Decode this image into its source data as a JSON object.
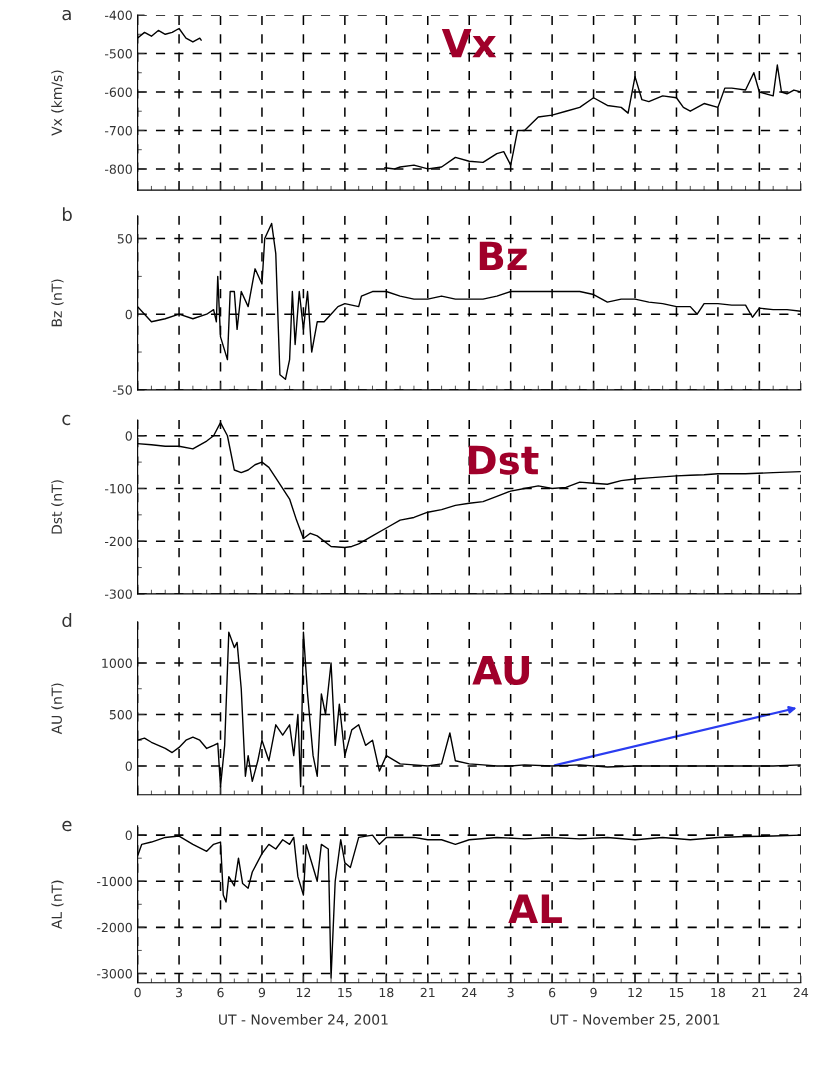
{
  "chart_data": [
    {
      "type": "line",
      "ylabel": "Vx (km/s)",
      "annotations": [
        "a",
        "Vx"
      ],
      "x": [
        "2001-11-24T00:00",
        "2001-11-24T00:30",
        "2001-11-24T01:00",
        "2001-11-24T01:30",
        "2001-11-24T02:00",
        "2001-11-24T02:30",
        "2001-11-24T03:00",
        "2001-11-24T03:30",
        "2001-11-24T04:00",
        "2001-11-24T04:30",
        "2001-11-24T04:36",
        "2001-11-24T05:00",
        "2001-11-24T17:54",
        "2001-11-24T18:36",
        "2001-11-24T19:00",
        "2001-11-24T20:00",
        "2001-11-24T21:00",
        "2001-11-24T22:00",
        "2001-11-24T23:00",
        "2001-11-25T00:00",
        "2001-11-25T01:00",
        "2001-11-25T02:00",
        "2001-11-25T02:30",
        "2001-11-25T03:00",
        "2001-11-25T03:12",
        "2001-11-25T03:30",
        "2001-11-25T04:00",
        "2001-11-25T05:00",
        "2001-11-25T06:00",
        "2001-11-25T07:00",
        "2001-11-25T08:00",
        "2001-11-25T09:00",
        "2001-11-25T10:00",
        "2001-11-25T11:00",
        "2001-11-25T11:30",
        "2001-11-25T12:00",
        "2001-11-25T12:30",
        "2001-11-25T13:00",
        "2001-11-25T14:00",
        "2001-11-25T15:00",
        "2001-11-25T15:30",
        "2001-11-25T16:00",
        "2001-11-25T17:00",
        "2001-11-25T18:00",
        "2001-11-25T18:30",
        "2001-11-25T19:00",
        "2001-11-25T20:00",
        "2001-11-25T20:36",
        "2001-11-25T21:00",
        "2001-11-25T22:00",
        "2001-11-25T22:18",
        "2001-11-25T22:36",
        "2001-11-25T23:00",
        "2001-11-25T23:30",
        "2001-11-26T00:00"
      ],
      "series": [
        {
          "color": "#000000",
          "values": [
            -460,
            -445,
            -455,
            -440,
            -450,
            -445,
            -435,
            -460,
            -470,
            -460,
            -465,
            null,
            -797,
            -800,
            -795,
            -790,
            -800,
            -795,
            -770,
            -780,
            -783,
            -760,
            -755,
            -790,
            -755,
            -700,
            -700,
            -665,
            -660,
            -650,
            -640,
            -615,
            -635,
            -640,
            -655,
            -560,
            -620,
            -625,
            -610,
            -615,
            -640,
            -650,
            -630,
            -640,
            -590,
            -590,
            -595,
            -550,
            -600,
            -610,
            -530,
            -600,
            -605,
            -595,
            -600
          ]
        }
      ],
      "xlim": [
        "2001-11-24T00:00",
        "2001-11-26T00:00"
      ],
      "ylim": [
        -855,
        -400
      ],
      "yticks": [
        -400,
        -500,
        -600,
        -700,
        -800
      ],
      "xticks": [
        {
          "value": "2001-11-24T00:00",
          "label": null
        },
        {
          "value": "2001-11-24T03:00",
          "label": null
        },
        {
          "value": "2001-11-24T06:00",
          "label": null
        },
        {
          "value": "2001-11-24T09:00",
          "label": null
        },
        {
          "value": "2001-11-24T12:00",
          "label": null
        },
        {
          "value": "2001-11-24T15:00",
          "label": null
        },
        {
          "value": "2001-11-24T18:00",
          "label": null
        },
        {
          "value": "2001-11-24T21:00",
          "label": null
        },
        {
          "value": "2001-11-25T00:00",
          "label": null
        },
        {
          "value": "2001-11-25T03:00",
          "label": null
        },
        {
          "value": "2001-11-25T06:00",
          "label": null
        },
        {
          "value": "2001-11-25T09:00",
          "label": null
        },
        {
          "value": "2001-11-25T12:00",
          "label": null
        },
        {
          "value": "2001-11-25T15:00",
          "label": null
        },
        {
          "value": "2001-11-25T18:00",
          "label": null
        },
        {
          "value": "2001-11-25T21:00",
          "label": null
        },
        {
          "value": "2001-11-26T00:00",
          "label": null
        }
      ],
      "tick_labels": "y",
      "grid": true,
      "marker": "none",
      "line_style": "solid"
    },
    {
      "type": "line",
      "ylabel": "Bz (nT)",
      "annotations": [
        "b",
        "Bz"
      ],
      "x": [
        "2001-11-24T00:00",
        "2001-11-24T00:30",
        "2001-11-24T01:00",
        "2001-11-24T02:00",
        "2001-11-24T03:00",
        "2001-11-24T04:00",
        "2001-11-24T05:00",
        "2001-11-24T05:30",
        "2001-11-24T05:42",
        "2001-11-24T05:48",
        "2001-11-24T06:00",
        "2001-11-24T06:30",
        "2001-11-24T06:42",
        "2001-11-24T07:00",
        "2001-11-24T07:12",
        "2001-11-24T07:30",
        "2001-11-24T08:00",
        "2001-11-24T08:30",
        "2001-11-24T09:00",
        "2001-11-24T09:12",
        "2001-11-24T09:42",
        "2001-11-24T10:00",
        "2001-11-24T10:18",
        "2001-11-24T10:42",
        "2001-11-24T11:00",
        "2001-11-24T11:12",
        "2001-11-24T11:24",
        "2001-11-24T11:42",
        "2001-11-24T12:00",
        "2001-11-24T12:18",
        "2001-11-24T12:36",
        "2001-11-24T13:00",
        "2001-11-24T13:30",
        "2001-11-24T14:00",
        "2001-11-24T14:30",
        "2001-11-24T15:00",
        "2001-11-24T16:00",
        "2001-11-24T16:12",
        "2001-11-24T17:00",
        "2001-11-24T18:00",
        "2001-11-24T19:00",
        "2001-11-24T20:00",
        "2001-11-24T21:00",
        "2001-11-24T22:00",
        "2001-11-24T23:00",
        "2001-11-25T00:00",
        "2001-11-25T01:00",
        "2001-11-25T02:00",
        "2001-11-25T03:00",
        "2001-11-25T04:00",
        "2001-11-25T06:00",
        "2001-11-25T08:00",
        "2001-11-25T09:00",
        "2001-11-25T10:00",
        "2001-11-25T11:00",
        "2001-11-25T12:00",
        "2001-11-25T13:00",
        "2001-11-25T14:00",
        "2001-11-25T15:00",
        "2001-11-25T16:00",
        "2001-11-25T16:30",
        "2001-11-25T17:00",
        "2001-11-25T18:00",
        "2001-11-25T19:00",
        "2001-11-25T20:00",
        "2001-11-25T20:30",
        "2001-11-25T21:00",
        "2001-11-25T22:00",
        "2001-11-25T23:00",
        "2001-11-26T00:00"
      ],
      "series": [
        {
          "color": "#000000",
          "values": [
            5,
            0,
            -5,
            -3,
            0,
            -3,
            0,
            3,
            -5,
            25,
            -15,
            -30,
            15,
            15,
            -10,
            15,
            5,
            30,
            20,
            50,
            60,
            40,
            -40,
            -43,
            -30,
            15,
            -20,
            15,
            -10,
            15,
            -25,
            -5,
            -5,
            0,
            5,
            7,
            5,
            12,
            15,
            15,
            12,
            10,
            10,
            12,
            10,
            10,
            10,
            12,
            15,
            15,
            15,
            15,
            13,
            8,
            10,
            10,
            8,
            7,
            5,
            5,
            0,
            7,
            7,
            6,
            6,
            -2,
            4,
            3,
            3,
            2
          ]
        }
      ],
      "xlim": [
        "2001-11-24T00:00",
        "2001-11-26T00:00"
      ],
      "ylim": [
        -50,
        65
      ],
      "yticks": [
        -50,
        0,
        50
      ],
      "xticks": [
        {
          "value": "2001-11-24T00:00",
          "label": null
        },
        {
          "value": "2001-11-24T03:00",
          "label": null
        },
        {
          "value": "2001-11-24T06:00",
          "label": null
        },
        {
          "value": "2001-11-24T09:00",
          "label": null
        },
        {
          "value": "2001-11-24T12:00",
          "label": null
        },
        {
          "value": "2001-11-24T15:00",
          "label": null
        },
        {
          "value": "2001-11-24T18:00",
          "label": null
        },
        {
          "value": "2001-11-24T21:00",
          "label": null
        },
        {
          "value": "2001-11-25T00:00",
          "label": null
        },
        {
          "value": "2001-11-25T03:00",
          "label": null
        },
        {
          "value": "2001-11-25T06:00",
          "label": null
        },
        {
          "value": "2001-11-25T09:00",
          "label": null
        },
        {
          "value": "2001-11-25T12:00",
          "label": null
        },
        {
          "value": "2001-11-25T15:00",
          "label": null
        },
        {
          "value": "2001-11-25T18:00",
          "label": null
        },
        {
          "value": "2001-11-25T21:00",
          "label": null
        },
        {
          "value": "2001-11-26T00:00",
          "label": null
        }
      ],
      "tick_labels": "y",
      "grid": true,
      "marker": "none",
      "line_style": "solid"
    },
    {
      "type": "line",
      "ylabel": "Dst (nT)",
      "annotations": [
        "c",
        "Dst"
      ],
      "x": [
        "2001-11-24T00:00",
        "2001-11-24T01:00",
        "2001-11-24T02:00",
        "2001-11-24T03:00",
        "2001-11-24T04:00",
        "2001-11-24T05:00",
        "2001-11-24T05:30",
        "2001-11-24T06:00",
        "2001-11-24T06:30",
        "2001-11-24T07:00",
        "2001-11-24T07:30",
        "2001-11-24T08:00",
        "2001-11-24T08:30",
        "2001-11-24T09:00",
        "2001-11-24T09:30",
        "2001-11-24T10:00",
        "2001-11-24T11:00",
        "2001-11-24T11:30",
        "2001-11-24T12:00",
        "2001-11-24T12:30",
        "2001-11-24T13:00",
        "2001-11-24T14:00",
        "2001-11-24T15:00",
        "2001-11-24T15:30",
        "2001-11-24T16:00",
        "2001-11-24T17:00",
        "2001-11-24T18:00",
        "2001-11-24T19:00",
        "2001-11-24T20:00",
        "2001-11-24T21:00",
        "2001-11-24T22:00",
        "2001-11-24T23:00",
        "2001-11-25T00:00",
        "2001-11-25T01:00",
        "2001-11-25T02:00",
        "2001-11-25T03:00",
        "2001-11-25T04:00",
        "2001-11-25T05:00",
        "2001-11-25T06:00",
        "2001-11-25T07:00",
        "2001-11-25T08:00",
        "2001-11-25T09:00",
        "2001-11-25T10:00",
        "2001-11-25T11:00",
        "2001-11-25T12:00",
        "2001-11-25T13:00",
        "2001-11-25T14:00",
        "2001-11-25T15:00",
        "2001-11-25T16:00",
        "2001-11-25T17:00",
        "2001-11-25T18:00",
        "2001-11-25T20:00",
        "2001-11-25T22:00",
        "2001-11-26T00:00"
      ],
      "series": [
        {
          "color": "#000000",
          "values": [
            -15,
            -17,
            -20,
            -20,
            -25,
            -10,
            0,
            25,
            0,
            -65,
            -70,
            -65,
            -55,
            -50,
            -60,
            -80,
            -120,
            -160,
            -195,
            -185,
            -190,
            -210,
            -212,
            -210,
            -205,
            -190,
            -175,
            -160,
            -155,
            -145,
            -140,
            -132,
            -128,
            -125,
            -115,
            -105,
            -100,
            -95,
            -100,
            -98,
            -88,
            -90,
            -92,
            -85,
            -82,
            -80,
            -78,
            -76,
            -75,
            -74,
            -72,
            -72,
            -70,
            -68
          ]
        }
      ],
      "xlim": [
        "2001-11-24T00:00",
        "2001-11-26T00:00"
      ],
      "ylim": [
        -300,
        30
      ],
      "yticks": [
        -300,
        -200,
        -100,
        0
      ],
      "xticks": [
        {
          "value": "2001-11-24T00:00",
          "label": null
        },
        {
          "value": "2001-11-24T03:00",
          "label": null
        },
        {
          "value": "2001-11-24T06:00",
          "label": null
        },
        {
          "value": "2001-11-24T09:00",
          "label": null
        },
        {
          "value": "2001-11-24T12:00",
          "label": null
        },
        {
          "value": "2001-11-24T15:00",
          "label": null
        },
        {
          "value": "2001-11-24T18:00",
          "label": null
        },
        {
          "value": "2001-11-24T21:00",
          "label": null
        },
        {
          "value": "2001-11-25T00:00",
          "label": null
        },
        {
          "value": "2001-11-25T03:00",
          "label": null
        },
        {
          "value": "2001-11-25T06:00",
          "label": null
        },
        {
          "value": "2001-11-25T09:00",
          "label": null
        },
        {
          "value": "2001-11-25T12:00",
          "label": null
        },
        {
          "value": "2001-11-25T15:00",
          "label": null
        },
        {
          "value": "2001-11-25T18:00",
          "label": null
        },
        {
          "value": "2001-11-25T21:00",
          "label": null
        },
        {
          "value": "2001-11-26T00:00",
          "label": null
        }
      ],
      "tick_labels": "y",
      "grid": true,
      "marker": "none",
      "line_style": "solid"
    },
    {
      "type": "line",
      "ylabel": "AU (nT)",
      "annotations": [
        "d",
        "AU"
      ],
      "x": [
        "2001-11-24T00:00",
        "2001-11-24T00:30",
        "2001-11-24T01:00",
        "2001-11-24T02:00",
        "2001-11-24T02:30",
        "2001-11-24T03:00",
        "2001-11-24T03:30",
        "2001-11-24T04:00",
        "2001-11-24T04:30",
        "2001-11-24T05:00",
        "2001-11-24T05:30",
        "2001-11-24T05:48",
        "2001-11-24T06:00",
        "2001-11-24T06:18",
        "2001-11-24T06:36",
        "2001-11-24T07:00",
        "2001-11-24T07:12",
        "2001-11-24T07:30",
        "2001-11-24T07:48",
        "2001-11-24T08:00",
        "2001-11-24T08:18",
        "2001-11-24T08:42",
        "2001-11-24T09:00",
        "2001-11-24T09:30",
        "2001-11-24T10:00",
        "2001-11-24T10:30",
        "2001-11-24T11:00",
        "2001-11-24T11:18",
        "2001-11-24T11:36",
        "2001-11-24T11:48",
        "2001-11-24T12:00",
        "2001-11-24T12:18",
        "2001-11-24T12:42",
        "2001-11-24T13:00",
        "2001-11-24T13:18",
        "2001-11-24T13:36",
        "2001-11-24T14:00",
        "2001-11-24T14:18",
        "2001-11-24T14:36",
        "2001-11-24T15:00",
        "2001-11-24T15:30",
        "2001-11-24T16:00",
        "2001-11-24T16:30",
        "2001-11-24T17:00",
        "2001-11-24T17:30",
        "2001-11-24T18:00",
        "2001-11-24T19:00",
        "2001-11-24T20:00",
        "2001-11-24T21:00",
        "2001-11-24T22:00",
        "2001-11-24T22:36",
        "2001-11-24T23:00",
        "2001-11-25T00:00",
        "2001-11-25T01:00",
        "2001-11-25T02:00",
        "2001-11-25T03:00",
        "2001-11-25T04:00",
        "2001-11-25T06:00",
        "2001-11-25T08:00",
        "2001-11-25T10:00",
        "2001-11-25T12:00",
        "2001-11-25T14:00",
        "2001-11-25T16:00",
        "2001-11-25T18:00",
        "2001-11-25T20:00",
        "2001-11-25T22:00",
        "2001-11-26T00:00"
      ],
      "series": [
        {
          "color": "#000000",
          "values": [
            250,
            270,
            230,
            170,
            130,
            180,
            250,
            280,
            250,
            170,
            200,
            220,
            -200,
            200,
            1300,
            1150,
            1200,
            750,
            -100,
            100,
            -150,
            50,
            250,
            50,
            400,
            300,
            400,
            100,
            500,
            -200,
            1300,
            700,
            100,
            -100,
            700,
            500,
            1000,
            200,
            600,
            100,
            350,
            400,
            200,
            250,
            -50,
            100,
            20,
            10,
            0,
            20,
            320,
            50,
            20,
            10,
            0,
            0,
            10,
            0,
            10,
            -10,
            0,
            0,
            0,
            0,
            0,
            0,
            10
          ]
        }
      ],
      "xlim": [
        "2001-11-24T00:00",
        "2001-11-26T00:00"
      ],
      "ylim": [
        -280,
        1400
      ],
      "yticks": [
        0,
        500,
        1000
      ],
      "xticks": [
        {
          "value": "2001-11-24T00:00",
          "label": null
        },
        {
          "value": "2001-11-24T03:00",
          "label": null
        },
        {
          "value": "2001-11-24T06:00",
          "label": null
        },
        {
          "value": "2001-11-24T09:00",
          "label": null
        },
        {
          "value": "2001-11-24T12:00",
          "label": null
        },
        {
          "value": "2001-11-24T15:00",
          "label": null
        },
        {
          "value": "2001-11-24T18:00",
          "label": null
        },
        {
          "value": "2001-11-24T21:00",
          "label": null
        },
        {
          "value": "2001-11-25T00:00",
          "label": null
        },
        {
          "value": "2001-11-25T03:00",
          "label": null
        },
        {
          "value": "2001-11-25T06:00",
          "label": null
        },
        {
          "value": "2001-11-25T09:00",
          "label": null
        },
        {
          "value": "2001-11-25T12:00",
          "label": null
        },
        {
          "value": "2001-11-25T15:00",
          "label": null
        },
        {
          "value": "2001-11-25T18:00",
          "label": null
        },
        {
          "value": "2001-11-25T21:00",
          "label": null
        },
        {
          "value": "2001-11-26T00:00",
          "label": null
        }
      ],
      "tick_labels": "y",
      "grid": true,
      "marker": "none",
      "line_style": "solid"
    },
    {
      "type": "line",
      "ylabel": "AL (nT)",
      "xlabel": "UT - November 24, 2001",
      "annotations": [
        "e",
        "AL",
        "UT - November 25, 2001"
      ],
      "x": [
        "2001-11-24T00:00",
        "2001-11-24T00:18",
        "2001-11-24T01:00",
        "2001-11-24T02:00",
        "2001-11-24T03:00",
        "2001-11-24T04:00",
        "2001-11-24T05:00",
        "2001-11-24T05:30",
        "2001-11-24T06:00",
        "2001-11-24T06:12",
        "2001-11-24T06:24",
        "2001-11-24T06:36",
        "2001-11-24T07:00",
        "2001-11-24T07:18",
        "2001-11-24T07:36",
        "2001-11-24T08:00",
        "2001-11-24T08:18",
        "2001-11-24T09:00",
        "2001-11-24T09:30",
        "2001-11-24T10:00",
        "2001-11-24T10:30",
        "2001-11-24T11:00",
        "2001-11-24T11:18",
        "2001-11-24T11:36",
        "2001-11-24T12:00",
        "2001-11-24T12:12",
        "2001-11-24T12:36",
        "2001-11-24T13:00",
        "2001-11-24T13:18",
        "2001-11-24T13:48",
        "2001-11-24T14:00",
        "2001-11-24T14:18",
        "2001-11-24T14:42",
        "2001-11-24T15:00",
        "2001-11-24T15:24",
        "2001-11-24T16:00",
        "2001-11-24T17:00",
        "2001-11-24T17:30",
        "2001-11-24T18:00",
        "2001-11-24T20:00",
        "2001-11-24T21:00",
        "2001-11-24T22:00",
        "2001-11-24T23:00",
        "2001-11-25T00:00",
        "2001-11-25T02:00",
        "2001-11-25T04:00",
        "2001-11-25T06:00",
        "2001-11-25T08:00",
        "2001-11-25T10:00",
        "2001-11-25T12:00",
        "2001-11-25T14:00",
        "2001-11-25T16:00",
        "2001-11-25T18:00",
        "2001-11-25T20:00",
        "2001-11-25T22:00",
        "2001-11-26T00:00"
      ],
      "series": [
        {
          "color": "#000000",
          "values": [
            -450,
            -200,
            -150,
            -50,
            -20,
            -200,
            -350,
            -200,
            -150,
            -1300,
            -1450,
            -900,
            -1100,
            -500,
            -1050,
            -1150,
            -800,
            -400,
            -200,
            -300,
            -100,
            -200,
            -50,
            -900,
            -1300,
            -200,
            -600,
            -1000,
            -200,
            -300,
            -3100,
            -1000,
            -100,
            -600,
            -700,
            -50,
            0,
            -200,
            -50,
            -50,
            -100,
            -100,
            -200,
            -100,
            -50,
            -80,
            -50,
            -80,
            -50,
            -100,
            -50,
            -100,
            -50,
            -30,
            -20,
            0
          ]
        }
      ],
      "xlim": [
        "2001-11-24T00:00",
        "2001-11-26T00:00"
      ],
      "ylim": [
        -3200,
        200
      ],
      "yticks": [
        -3000,
        -2000,
        -1000,
        0
      ],
      "xticks": [
        {
          "value": "2001-11-24T00:00",
          "label": "0"
        },
        {
          "value": "2001-11-24T03:00",
          "label": "3"
        },
        {
          "value": "2001-11-24T06:00",
          "label": "6"
        },
        {
          "value": "2001-11-24T09:00",
          "label": "9"
        },
        {
          "value": "2001-11-24T12:00",
          "label": "12"
        },
        {
          "value": "2001-11-24T15:00",
          "label": "15"
        },
        {
          "value": "2001-11-24T18:00",
          "label": "18"
        },
        {
          "value": "2001-11-24T21:00",
          "label": "21"
        },
        {
          "value": "2001-11-25T00:00",
          "label": "24"
        },
        {
          "value": "2001-11-25T03:00",
          "label": "3"
        },
        {
          "value": "2001-11-25T06:00",
          "label": "6"
        },
        {
          "value": "2001-11-25T09:00",
          "label": "9"
        },
        {
          "value": "2001-11-25T12:00",
          "label": "12"
        },
        {
          "value": "2001-11-25T15:00",
          "label": "15"
        },
        {
          "value": "2001-11-25T18:00",
          "label": "18"
        },
        {
          "value": "2001-11-25T21:00",
          "label": "21"
        },
        {
          "value": "2001-11-26T00:00",
          "label": "24"
        }
      ],
      "grid": true,
      "marker": "none",
      "line_style": "solid"
    }
  ]
}
